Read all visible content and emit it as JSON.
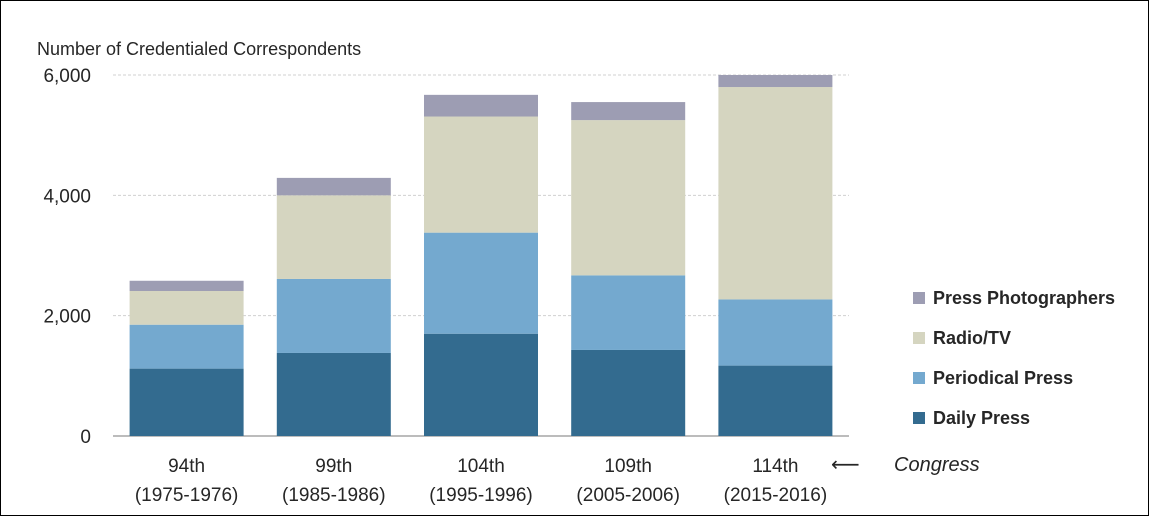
{
  "chart_data": {
    "type": "bar",
    "stacked": true,
    "ylabel": "Number of Credentialed Correspondents",
    "ylim": [
      0,
      6000
    ],
    "yticks": [
      0,
      2000,
      4000,
      6000
    ],
    "ytick_labels": [
      "0",
      "2,000",
      "4,000",
      "6,000"
    ],
    "grid": true,
    "legend_position": "right",
    "categories": [
      {
        "line1": "94th",
        "line2": "(1975-1976)"
      },
      {
        "line1": "99th",
        "line2": "(1985-1986)"
      },
      {
        "line1": "104th",
        "line2": "(1995-1996)"
      },
      {
        "line1": "109th",
        "line2": "(2005-2006)"
      },
      {
        "line1": "114th",
        "line2": "(2015-2016)"
      }
    ],
    "series": [
      {
        "name": "Daily Press",
        "color": "#336b8f",
        "values": [
          1120,
          1380,
          1700,
          1430,
          1170
        ]
      },
      {
        "name": "Periodical Press",
        "color": "#74a9cf",
        "values": [
          730,
          1230,
          1680,
          1240,
          1100
        ]
      },
      {
        "name": "Radio/TV",
        "color": "#d5d5c0",
        "values": [
          560,
          1390,
          1930,
          2580,
          3530
        ]
      },
      {
        "name": "Press Photographers",
        "color": "#9d9db3",
        "values": [
          170,
          290,
          360,
          300,
          200
        ]
      }
    ],
    "legend_order": [
      "Press Photographers",
      "Radio/TV",
      "Periodical Press",
      "Daily Press"
    ],
    "annotation": {
      "arrow": "⟵",
      "text": "Congress"
    }
  }
}
